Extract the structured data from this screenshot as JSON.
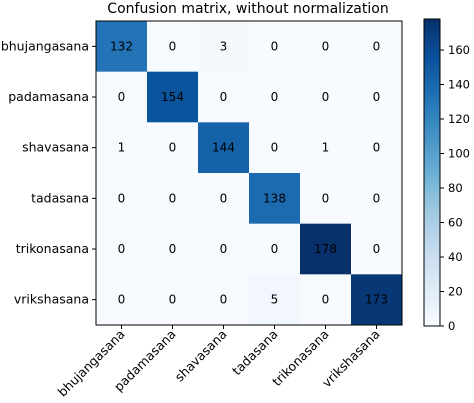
{
  "chart_data": {
    "type": "heatmap",
    "title": "Confusion matrix, without normalization",
    "xlabel": "",
    "ylabel": "",
    "row_labels": [
      "bhujangasana",
      "padamasana",
      "shavasana",
      "tadasana",
      "trikonasana",
      "vrikshasana"
    ],
    "col_labels": [
      "bhujangasana",
      "padamasana",
      "shavasana",
      "tadasana",
      "trikonasana",
      "vrikshasana"
    ],
    "values": [
      [
        132,
        0,
        3,
        0,
        0,
        0
      ],
      [
        0,
        154,
        0,
        0,
        0,
        0
      ],
      [
        1,
        0,
        144,
        0,
        1,
        0
      ],
      [
        0,
        0,
        0,
        138,
        0,
        0
      ],
      [
        0,
        0,
        0,
        0,
        178,
        0
      ],
      [
        0,
        0,
        0,
        5,
        0,
        173
      ]
    ],
    "color_range": [
      0,
      178
    ],
    "colormap": "Blues",
    "colorbar_ticks": [
      0,
      20,
      40,
      60,
      80,
      100,
      120,
      140,
      160
    ],
    "colorbar_tick_labels": [
      "0",
      "20",
      "40",
      "60",
      "80",
      "100",
      "120",
      "140",
      "160"
    ],
    "colors": {
      "low": "#f7fbff",
      "high": "#08306b"
    }
  }
}
